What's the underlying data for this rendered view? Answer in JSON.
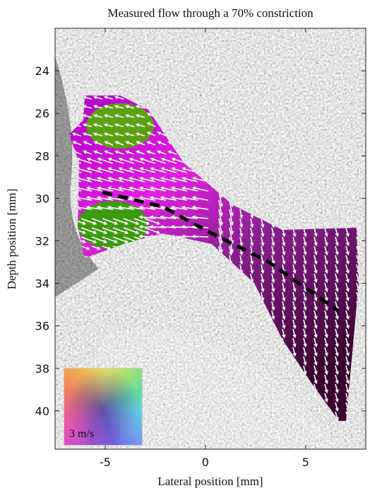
{
  "chart_data": {
    "type": "image",
    "title": "Measured flow through a 70% constriction",
    "x_label": "Lateral position [mm]",
    "y_label": "Depth position [mm]",
    "xlim": [
      -7.5,
      8
    ],
    "xticks": [
      -5,
      0,
      5
    ],
    "ylim": [
      22,
      41.8
    ],
    "yticks": [
      24,
      26,
      28,
      30,
      32,
      34,
      36,
      38,
      40
    ],
    "legend_label": "3 m/s"
  }
}
